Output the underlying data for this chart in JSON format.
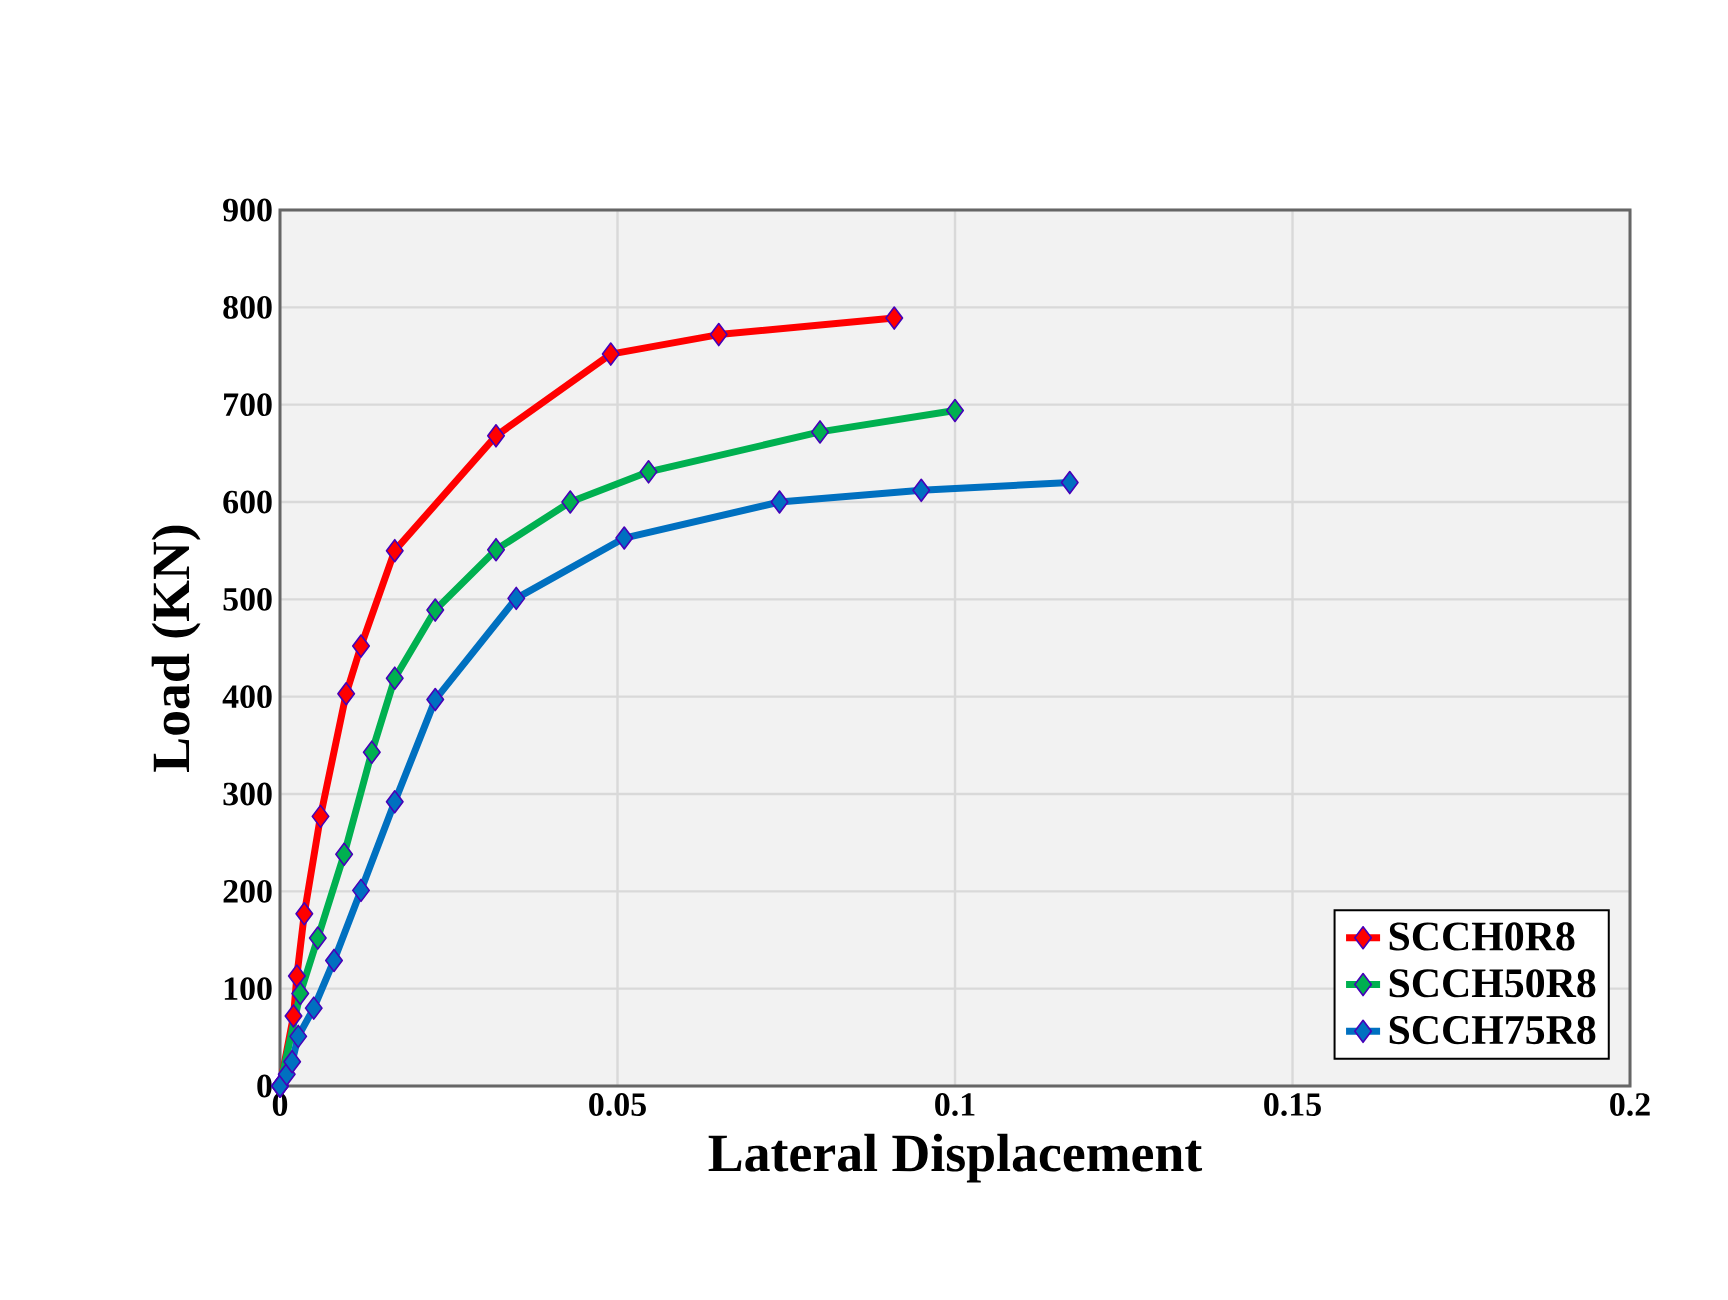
{
  "chart_data": {
    "type": "line",
    "xlabel": "Lateral Displacement",
    "ylabel": "Load (KN)",
    "xlim": [
      0,
      0.2
    ],
    "ylim": [
      0,
      900
    ],
    "xticks": [
      0,
      0.05,
      0.1,
      0.15,
      0.2
    ],
    "yticks": [
      0,
      100,
      200,
      300,
      400,
      500,
      600,
      700,
      800,
      900
    ],
    "grid": true,
    "legend": "bottom right",
    "marker": "diamond",
    "line_style": "solid",
    "series": [
      {
        "name": "SCCH0R8",
        "color": "#ff0000",
        "x": [
          0,
          0.001,
          0.002,
          0.0025,
          0.0036,
          0.006,
          0.0098,
          0.012,
          0.017,
          0.032,
          0.049,
          0.065,
          0.091
        ],
        "values": [
          0,
          null,
          72,
          113,
          177,
          277,
          403,
          452,
          550,
          668,
          752,
          772,
          789
        ]
      },
      {
        "name": "SCCH50R8",
        "color": "#00b050",
        "x": [
          0,
          0.001,
          0.002,
          0.003,
          0.0056,
          0.0095,
          0.0136,
          0.017,
          0.023,
          0.032,
          0.043,
          0.0546,
          0.08,
          0.1
        ],
        "values": [
          0,
          null,
          null,
          95,
          152,
          238,
          343,
          419,
          489,
          551,
          600,
          631,
          672,
          694
        ]
      },
      {
        "name": "SCCH75R8",
        "color": "#0070c0",
        "x": [
          0,
          0.001,
          0.0018,
          0.0027,
          0.005,
          0.008,
          0.012,
          0.017,
          0.023,
          0.035,
          0.051,
          0.074,
          0.095,
          0.117
        ],
        "values": [
          0,
          12,
          25,
          51,
          80,
          129,
          201,
          292,
          397,
          501,
          563,
          600,
          612,
          620
        ]
      }
    ]
  }
}
